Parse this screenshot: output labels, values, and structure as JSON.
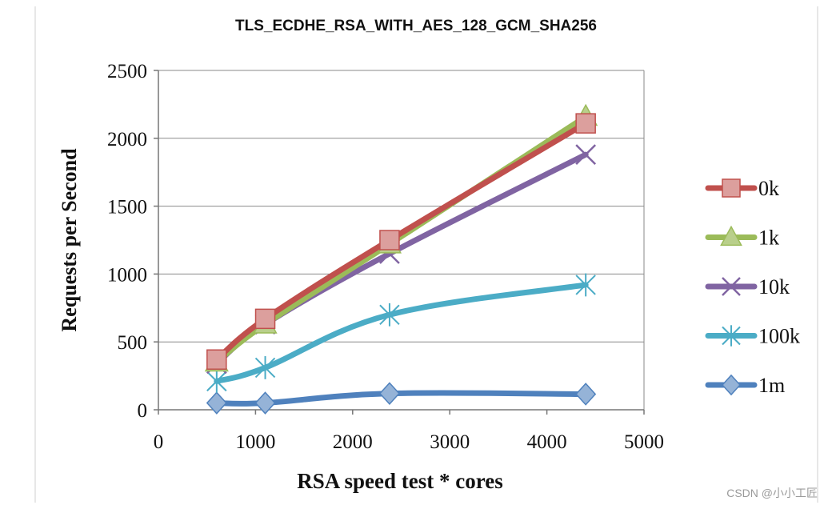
{
  "chart_data": {
    "type": "line",
    "title": "TLS_ECDHE_RSA_WITH_AES_128_GCM_SHA256",
    "xlabel": "RSA speed test * cores",
    "ylabel": "Requests per Second",
    "xlim": [
      0,
      5000
    ],
    "ylim": [
      0,
      2500
    ],
    "xticks": [
      0,
      1000,
      2000,
      3000,
      4000,
      5000
    ],
    "yticks": [
      0,
      500,
      1000,
      1500,
      2000,
      2500
    ],
    "grid": "horizontal",
    "legend_position": "right",
    "x": [
      600,
      1100,
      2380,
      4400
    ],
    "series": [
      {
        "name": "0k",
        "color": "#c0504d",
        "marker": "square",
        "values": [
          370,
          670,
          1250,
          2110
        ]
      },
      {
        "name": "1k",
        "color": "#9bbb59",
        "marker": "triangle",
        "values": [
          350,
          630,
          1220,
          2160
        ]
      },
      {
        "name": "10k",
        "color": "#8064a2",
        "marker": "x",
        "values": [
          340,
          630,
          1150,
          1880
        ]
      },
      {
        "name": "100k",
        "color": "#4bacc6",
        "marker": "star",
        "values": [
          210,
          310,
          700,
          920
        ]
      },
      {
        "name": "1m",
        "color": "#4f81bd",
        "marker": "diamond",
        "values": [
          50,
          50,
          120,
          115
        ]
      }
    ]
  },
  "watermark": "CSDN @小小工匠"
}
